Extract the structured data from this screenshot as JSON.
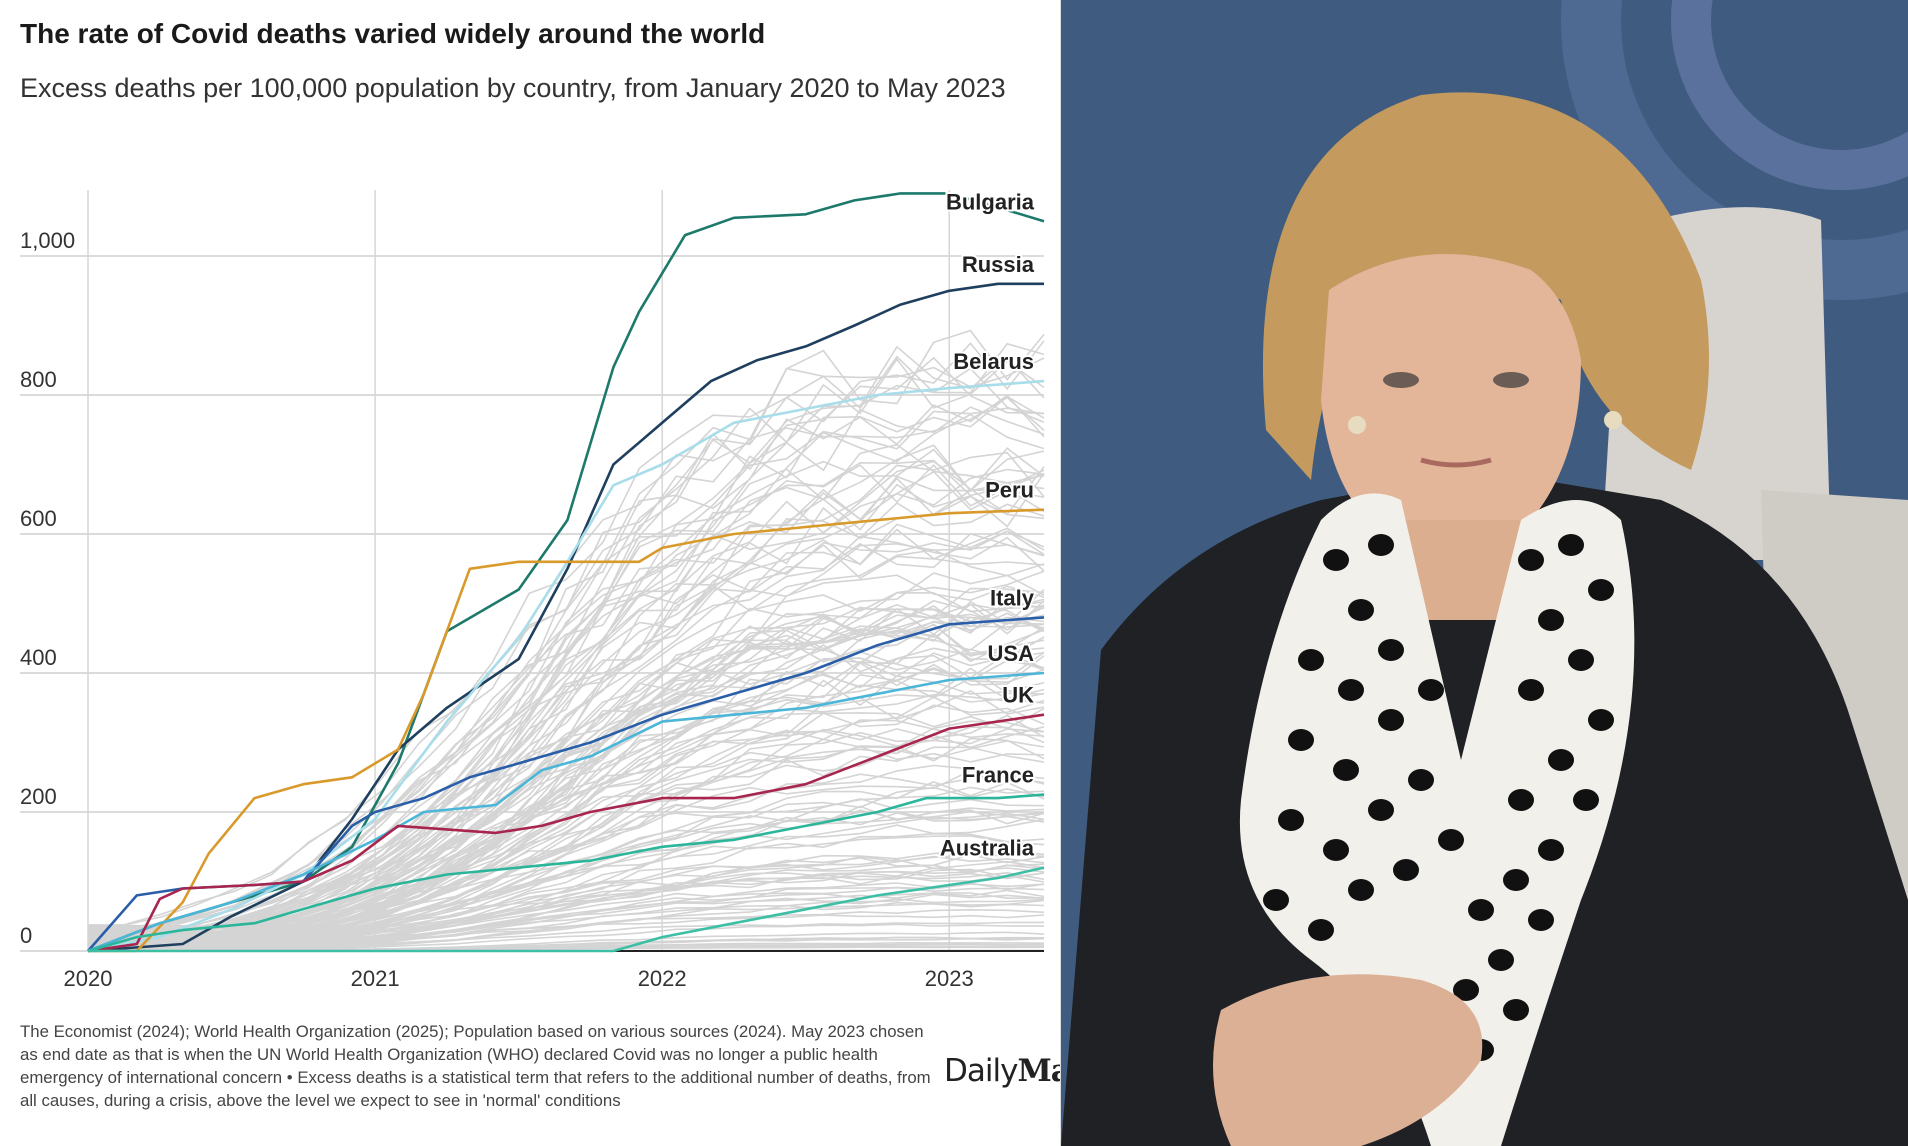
{
  "chart": {
    "title": "The rate of Covid deaths varied widely around the world",
    "subtitle": "Excess deaths per 100,000 population by country, from January 2020 to May 2023",
    "source": "The Economist (2024); World Health Organization (2025); Population based on various sources (2024). May 2023 chosen as end date as that is when the UN World Health Organization (WHO) declared Covid was no longer a public health emergency of international concern • Excess deaths is a statistical term that refers to the additional number of deaths, from all causes, during a crisis, above the level we expect to see in 'normal' conditions",
    "logo_text": "DailyMail",
    "logo_light": "Daily",
    "logo_bold": "Mail"
  },
  "chart_data": {
    "type": "line",
    "title": "The rate of Covid deaths varied widely around the world",
    "subtitle": "Excess deaths per 100,000 population by country, from January 2020 to May 2023",
    "xlabel": "",
    "ylabel": "",
    "x_ticks": [
      "2020",
      "2021",
      "2022",
      "2023"
    ],
    "x_tick_values": [
      2020,
      2021,
      2022,
      2023
    ],
    "y_ticks": [
      "0",
      "200",
      "400",
      "600",
      "800",
      "1,000"
    ],
    "y_tick_values": [
      0,
      200,
      400,
      600,
      800,
      1000
    ],
    "xlim": [
      2020.0,
      2023.33
    ],
    "ylim": [
      0,
      1100
    ],
    "grid": true,
    "legend": "direct labels at right end of each highlighted line",
    "series": [
      {
        "name": "Bulgaria",
        "color": "#1d7a6b",
        "x": [
          2020.0,
          2020.25,
          2020.5,
          2020.75,
          2020.92,
          2021.08,
          2021.25,
          2021.5,
          2021.67,
          2021.83,
          2021.92,
          2022.08,
          2022.25,
          2022.5,
          2022.67,
          2022.83,
          2023.0,
          2023.17,
          2023.33
        ],
        "y": [
          0,
          40,
          70,
          100,
          150,
          270,
          460,
          520,
          620,
          840,
          920,
          1030,
          1055,
          1060,
          1080,
          1090,
          1090,
          1070,
          1050
        ]
      },
      {
        "name": "Russia",
        "color": "#1f3f5e",
        "x": [
          2020.0,
          2020.33,
          2020.5,
          2020.75,
          2020.92,
          2021.08,
          2021.25,
          2021.5,
          2021.67,
          2021.83,
          2022.0,
          2022.17,
          2022.33,
          2022.5,
          2022.67,
          2022.83,
          2023.0,
          2023.17,
          2023.33
        ],
        "y": [
          0,
          10,
          50,
          100,
          190,
          290,
          350,
          420,
          550,
          700,
          760,
          820,
          850,
          870,
          900,
          930,
          950,
          960,
          960
        ]
      },
      {
        "name": "Belarus",
        "color": "#a8dde9",
        "x": [
          2020.0,
          2020.25,
          2020.5,
          2020.75,
          2021.0,
          2021.25,
          2021.5,
          2021.67,
          2021.83,
          2022.0,
          2022.25,
          2022.5,
          2022.75,
          2023.0,
          2023.17,
          2023.33
        ],
        "y": [
          0,
          20,
          60,
          110,
          190,
          330,
          450,
          560,
          670,
          700,
          760,
          780,
          800,
          810,
          815,
          820
        ]
      },
      {
        "name": "Peru",
        "color": "#d99a2b",
        "x": [
          2020.0,
          2020.17,
          2020.33,
          2020.42,
          2020.58,
          2020.75,
          2020.92,
          2021.08,
          2021.17,
          2021.33,
          2021.5,
          2021.67,
          2021.92,
          2022.0,
          2022.25,
          2022.5,
          2022.75,
          2023.0,
          2023.33
        ],
        "y": [
          0,
          0,
          70,
          140,
          220,
          240,
          250,
          290,
          370,
          550,
          560,
          560,
          560,
          580,
          600,
          610,
          620,
          630,
          635
        ]
      },
      {
        "name": "Italy",
        "color": "#2a5ea8",
        "x": [
          2020.0,
          2020.17,
          2020.33,
          2020.58,
          2020.75,
          2020.92,
          2021.0,
          2021.17,
          2021.33,
          2021.5,
          2021.75,
          2022.0,
          2022.25,
          2022.5,
          2022.75,
          2023.0,
          2023.33
        ],
        "y": [
          0,
          80,
          90,
          95,
          100,
          180,
          200,
          220,
          250,
          270,
          300,
          340,
          370,
          400,
          440,
          470,
          480
        ]
      },
      {
        "name": "USA",
        "color": "#4cb6d9",
        "x": [
          2020.0,
          2020.25,
          2020.5,
          2020.75,
          2021.0,
          2021.17,
          2021.42,
          2021.58,
          2021.75,
          2022.0,
          2022.25,
          2022.5,
          2022.75,
          2023.0,
          2023.33
        ],
        "y": [
          0,
          40,
          70,
          110,
          160,
          200,
          210,
          260,
          280,
          330,
          340,
          350,
          370,
          390,
          400
        ]
      },
      {
        "name": "UK",
        "color": "#a8254e",
        "x": [
          2020.0,
          2020.17,
          2020.25,
          2020.33,
          2020.58,
          2020.75,
          2020.92,
          2021.08,
          2021.25,
          2021.42,
          2021.58,
          2021.75,
          2022.0,
          2022.25,
          2022.5,
          2022.75,
          2023.0,
          2023.33
        ],
        "y": [
          0,
          10,
          75,
          90,
          95,
          100,
          130,
          180,
          175,
          170,
          180,
          200,
          220,
          220,
          240,
          280,
          320,
          340
        ]
      },
      {
        "name": "France",
        "color": "#2bb59a",
        "x": [
          2020.0,
          2020.17,
          2020.33,
          2020.58,
          2020.83,
          2021.0,
          2021.25,
          2021.5,
          2021.75,
          2022.0,
          2022.25,
          2022.5,
          2022.75,
          2022.92,
          2023.17,
          2023.33
        ],
        "y": [
          0,
          20,
          30,
          40,
          70,
          90,
          110,
          120,
          130,
          150,
          160,
          180,
          200,
          220,
          220,
          225
        ]
      },
      {
        "name": "Australia",
        "color": "#3dbfa5",
        "x": [
          2020.0,
          2020.5,
          2021.0,
          2021.5,
          2021.83,
          2022.0,
          2022.25,
          2022.5,
          2022.75,
          2023.0,
          2023.17,
          2023.33
        ],
        "y": [
          0,
          0,
          0,
          0,
          0,
          20,
          40,
          60,
          80,
          95,
          105,
          120
        ]
      }
    ],
    "background_series_color": "#d4d4d4"
  },
  "photo": {
    "alt": "",
    "colors": {
      "background": "#3d5a7e",
      "hair": "#c49a5e",
      "jacket": "#1f2124",
      "scarf": "#f2f0ea",
      "dots": "#111111",
      "skin": "#e3b69a"
    }
  }
}
